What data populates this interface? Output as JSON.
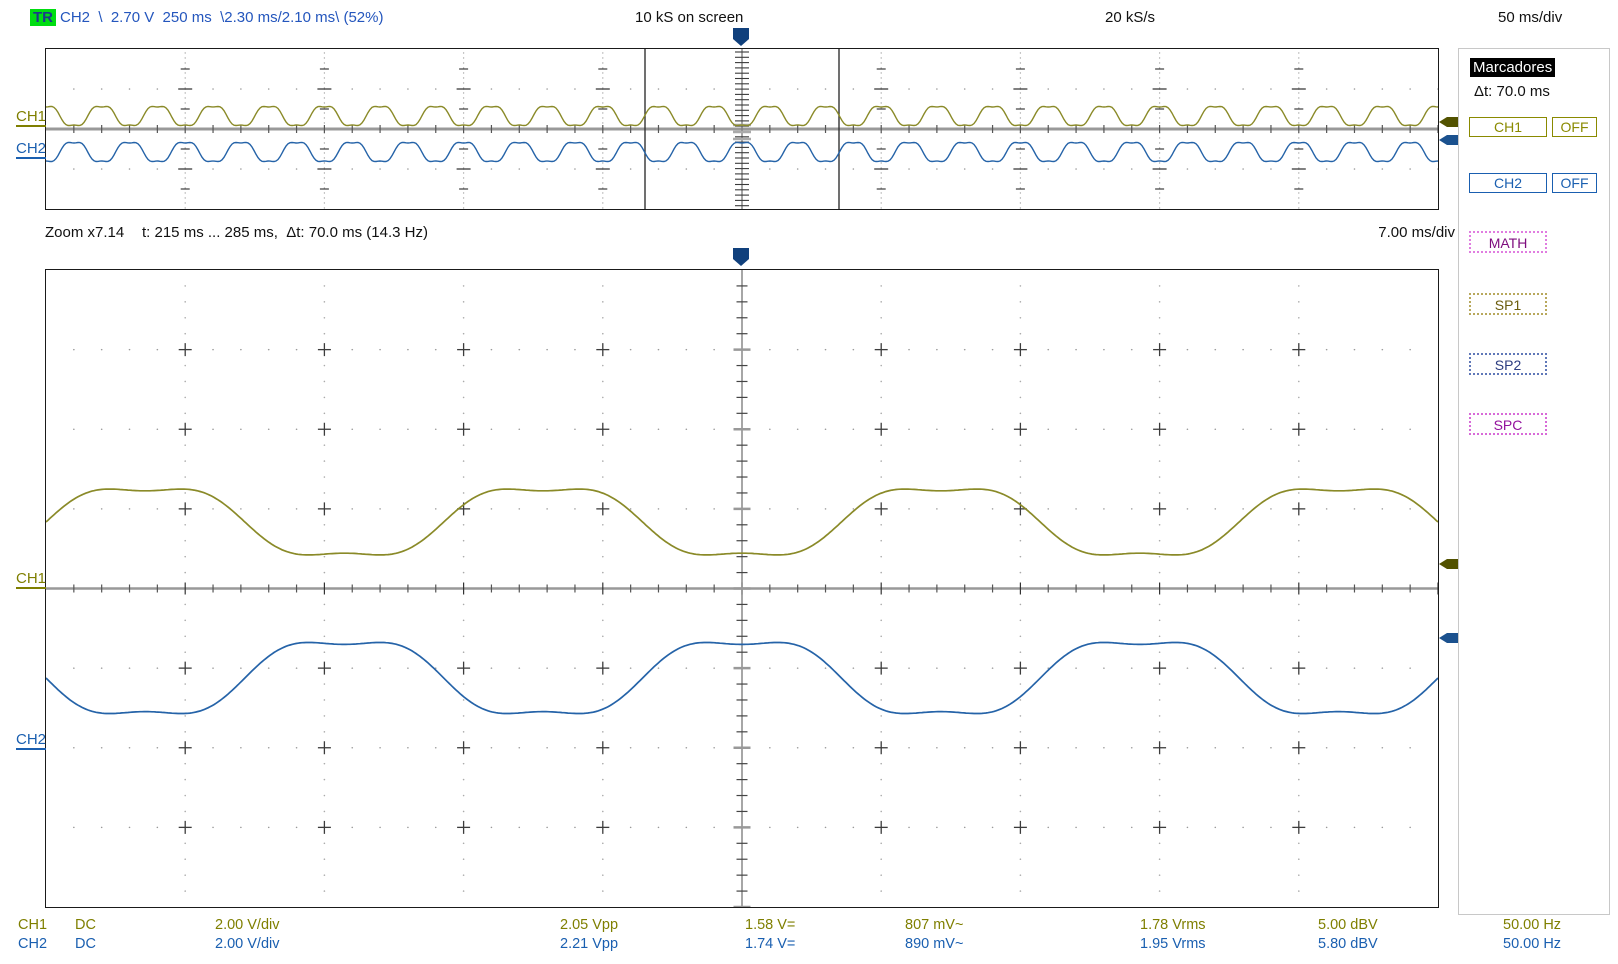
{
  "top_bar": {
    "trigger_badge": "TR",
    "trigger_info": "CH2  \\  2.70 V  250 ms  \\2.30 ms/2.10 ms\\ (52%)",
    "samples_on_screen": "10 kS on screen",
    "sample_rate": "20 kS/s",
    "time_per_div": "50 ms/div"
  },
  "zoom_bar": {
    "zoom_factor": "Zoom x7.14",
    "detail": "t: 215 ms ... 285 ms,  Δt: 70.0 ms (14.3 Hz)",
    "time_per_div": "7.00 ms/div"
  },
  "overview": {
    "ch1_label": "CH1",
    "ch2_label": "CH2"
  },
  "main": {
    "ch1_label": "CH1",
    "ch2_label": "CH2"
  },
  "sidebar": {
    "title": "Marcadores",
    "delta_t": "Δt: 70.0 ms",
    "ch1_button": "CH1",
    "ch1_off": "OFF",
    "ch2_button": "CH2",
    "ch2_off": "OFF",
    "math_button": "MATH",
    "sp1_button": "SP1",
    "sp2_button": "SP2",
    "spc_button": "SPC"
  },
  "measurements": {
    "rows": [
      {
        "channel": "CH1",
        "coupling": "DC",
        "vdiv": "2.00 V/div",
        "vpp": "2.05 Vpp",
        "vmean": "1.58 V=",
        "vac": "807 mV~",
        "vrms": "1.78 Vrms",
        "dbv": "5.00 dBV",
        "freq": "50.00 Hz"
      },
      {
        "channel": "CH2",
        "coupling": "DC",
        "vdiv": "2.00 V/div",
        "vpp": "2.21 Vpp",
        "vmean": "1.74 V=",
        "vac": "890 mV~",
        "vrms": "1.95 Vrms",
        "dbv": "5.80 dBV",
        "freq": "50.00 Hz"
      }
    ]
  },
  "waveforms": {
    "signal_frequency_hz": 50,
    "shape": "sine with 18% third harmonic (double-humped top)",
    "ch1_color": "#8a8a28",
    "ch2_color": "#2563a8",
    "ch2_polarity": "inverted vs CH1",
    "harmonic3_ratio": 0.18,
    "main_periods_visible": 3.5,
    "overview_periods_visible": 25
  },
  "colors": {
    "marker": "#10407c",
    "ch1_arrow": "#525200",
    "ch2_arrow": "#1b518e",
    "grid_dot": "#999999",
    "grid_cross": "#3c3c3c",
    "axis_line": "#999999",
    "window_line": "#333333"
  }
}
